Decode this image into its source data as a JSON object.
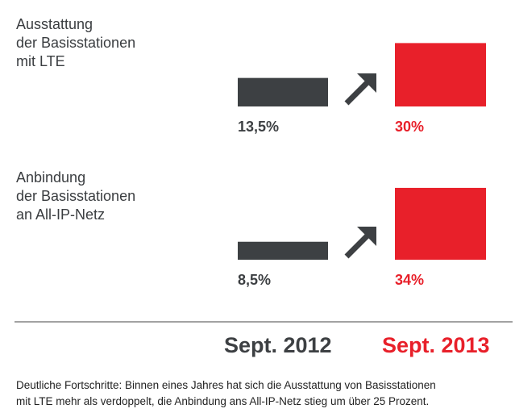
{
  "chart_data": {
    "type": "bar",
    "title": "",
    "xlabel": "",
    "ylabel": "",
    "ylim": [
      0,
      34
    ],
    "periods": [
      "Sept. 2012",
      "Sept. 2013"
    ],
    "groups": [
      {
        "label_lines": [
          "Ausstattung",
          "der Basisstationen",
          "mit LTE"
        ],
        "values": [
          13.5,
          30
        ],
        "value_labels": [
          "13,5%",
          "30%"
        ]
      },
      {
        "label_lines": [
          "Anbindung",
          "der Basisstationen",
          "an All-IP-Netz"
        ],
        "values": [
          8.5,
          34
        ],
        "value_labels": [
          "8,5%",
          "34%"
        ]
      }
    ],
    "colors": {
      "2012": "#3d4043",
      "2013": "#e8202a"
    }
  },
  "caption": {
    "line1": "Deutliche Fortschritte: Binnen eines Jahres hat sich die Ausstattung von Basisstationen",
    "line2": "mit LTE mehr als verdoppelt, die Anbindung ans All-IP-Netz stieg um über 25 Prozent."
  }
}
